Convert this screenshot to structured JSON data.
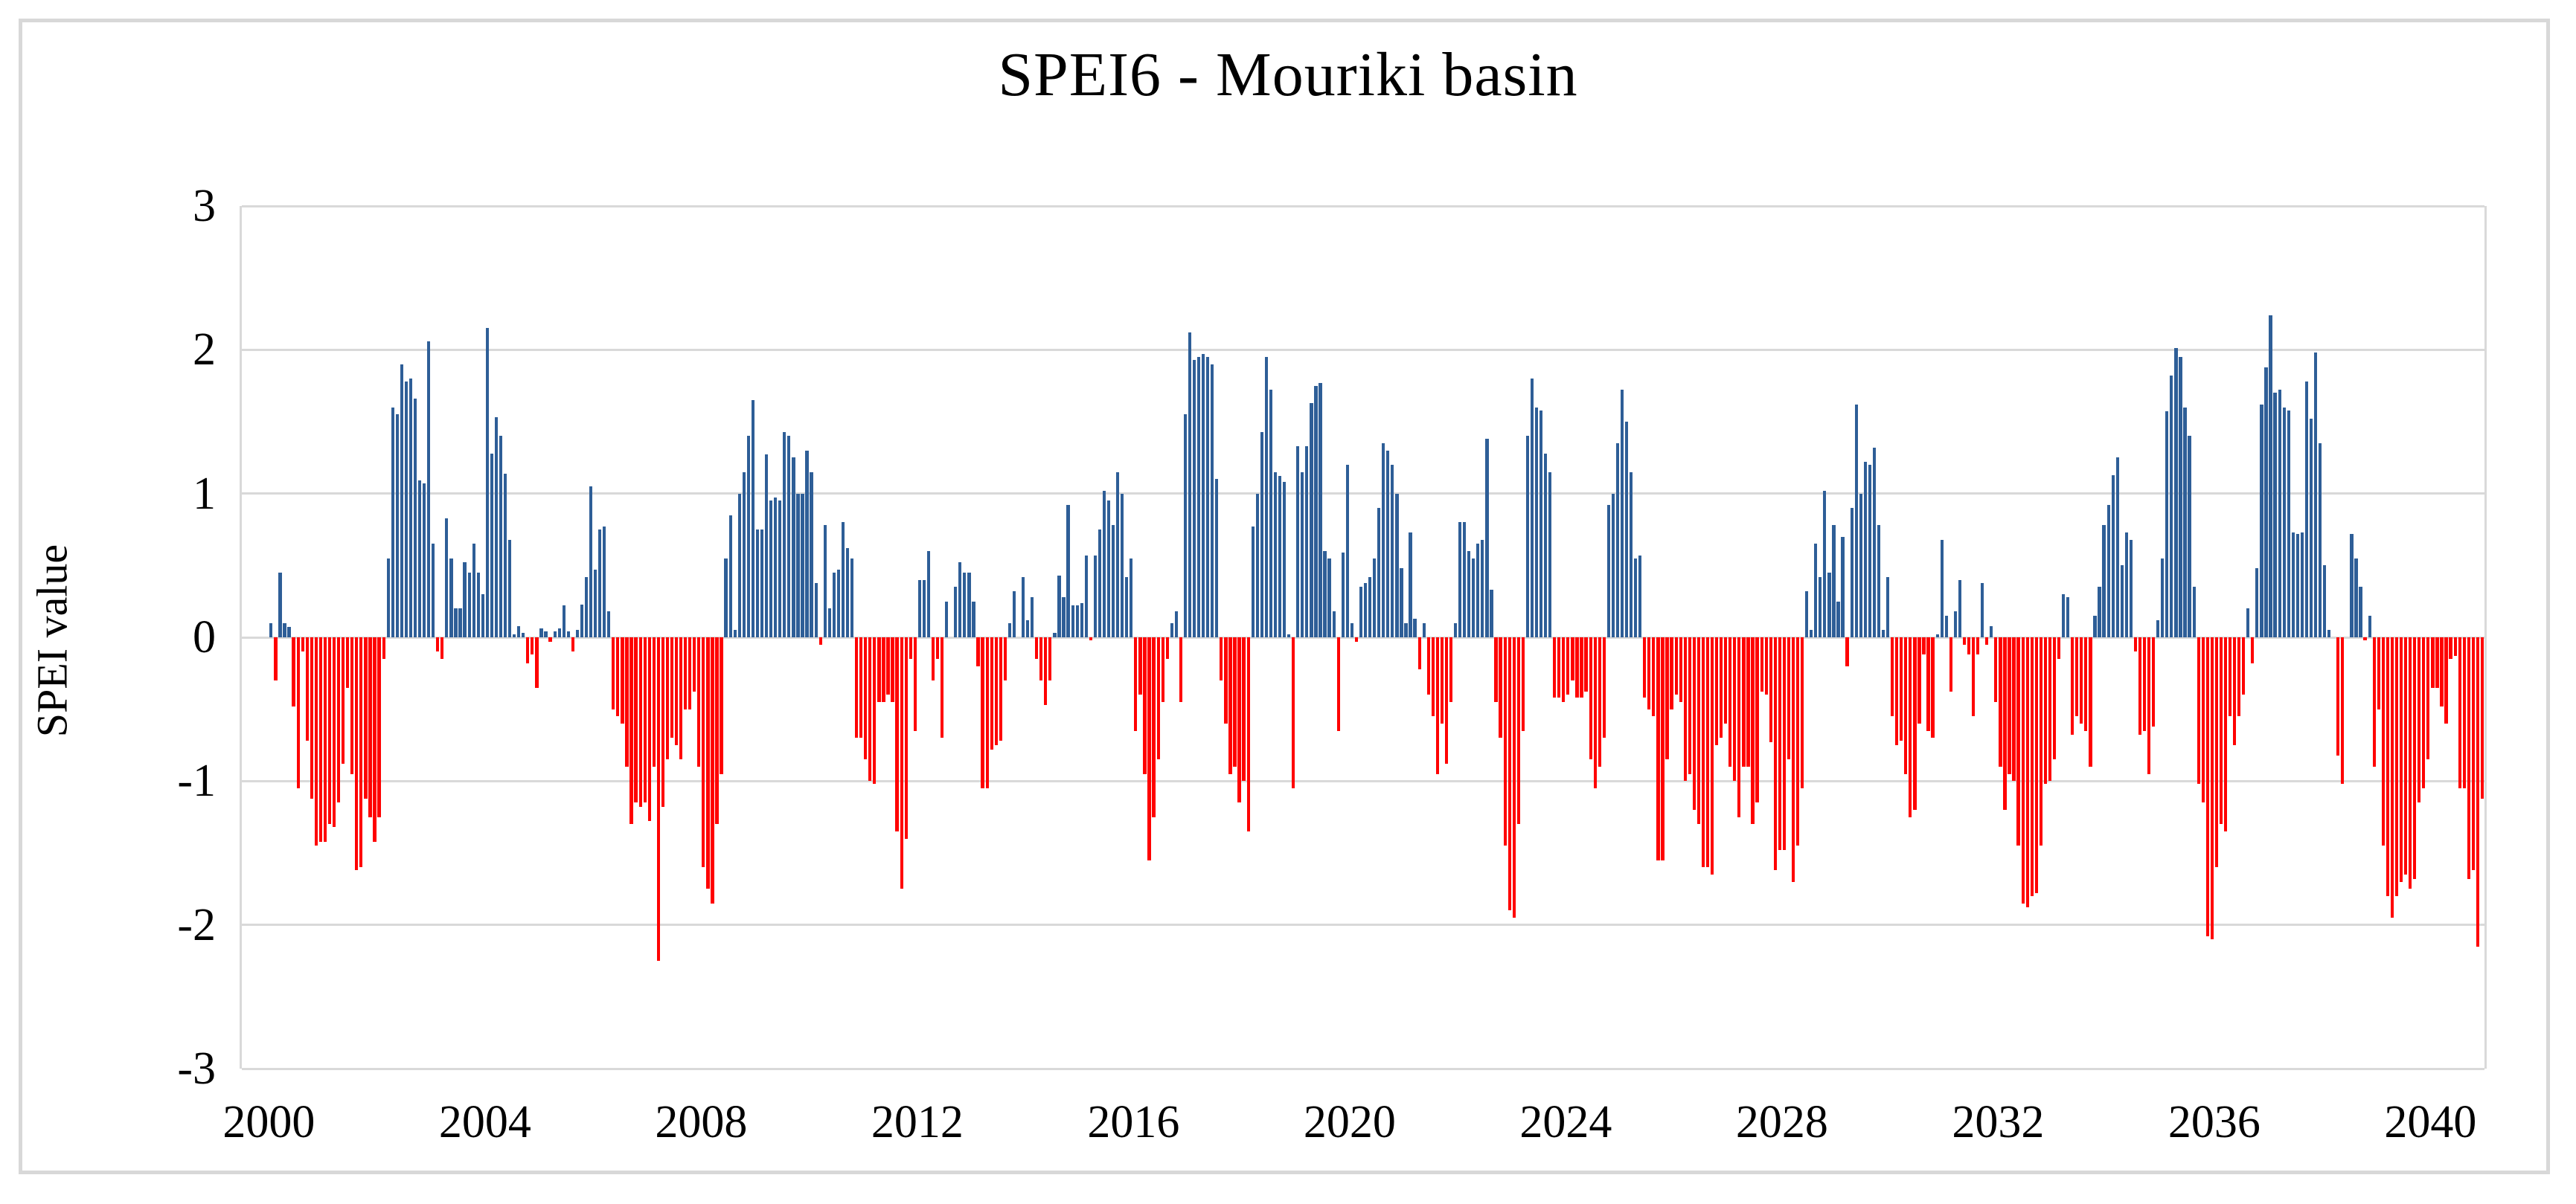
{
  "chart_data": {
    "type": "bar",
    "title": "SPEI6 - Mouriki basin",
    "xlabel": "",
    "ylabel": "SPEI value",
    "ylim": [
      -3,
      3
    ],
    "yticks": [
      3,
      2,
      1,
      0,
      -1,
      -2,
      -3
    ],
    "xticks": [
      2000,
      2004,
      2008,
      2012,
      2016,
      2020,
      2024,
      2028,
      2032,
      2036,
      2040
    ],
    "x_start": "1999-07",
    "x_end": "2040-12",
    "frequency": "monthly",
    "grid": "horizontal",
    "legend_position": "none",
    "series_name": "SPEI6 monthly value",
    "colors": {
      "positive": "#2E5E97",
      "negative": "#FF0000",
      "gridline": "#D9D9D9",
      "figure_border": "#D8D8D8",
      "text": "#000000"
    },
    "values": [
      0,
      0,
      0,
      0,
      0,
      0,
      0.1,
      -0.3,
      0.45,
      0.1,
      0.07,
      -0.48,
      -1.05,
      -0.1,
      -0.72,
      -1.12,
      -1.45,
      -1.42,
      -1.42,
      -1.3,
      -1.32,
      -1.15,
      -0.88,
      -0.35,
      -0.95,
      -1.62,
      -1.6,
      -1.12,
      -1.25,
      -1.42,
      -1.25,
      -0.15,
      0.55,
      1.6,
      1.55,
      1.9,
      1.78,
      1.8,
      1.66,
      1.09,
      1.07,
      2.06,
      0.65,
      -0.1,
      -0.15,
      0.83,
      0.55,
      0.2,
      0.2,
      0.52,
      0.45,
      0.65,
      0.45,
      0.3,
      2.15,
      1.28,
      1.53,
      1.4,
      1.14,
      0.68,
      0.02,
      0.08,
      0.03,
      -0.18,
      -0.12,
      -0.35,
      0.06,
      0.04,
      -0.03,
      0.04,
      0.06,
      0.22,
      0.04,
      -0.1,
      0.05,
      0.23,
      0.42,
      1.05,
      0.47,
      0.75,
      0.77,
      0.18,
      -0.5,
      -0.55,
      -0.6,
      -0.9,
      -1.3,
      -1.15,
      -1.18,
      -1.15,
      -1.28,
      -0.9,
      -2.25,
      -1.18,
      -0.85,
      -0.7,
      -0.75,
      -0.85,
      -0.5,
      -0.5,
      -0.38,
      -0.9,
      -1.6,
      -1.75,
      -1.85,
      -1.3,
      -0.95,
      0.55,
      0.85,
      0.05,
      1.0,
      1.15,
      1.4,
      1.65,
      0.75,
      0.75,
      1.27,
      0.95,
      0.97,
      0.95,
      1.43,
      1.4,
      1.25,
      1.0,
      1.0,
      1.3,
      1.15,
      0.38,
      -0.05,
      0.78,
      0.2,
      0.45,
      0.47,
      0.8,
      0.62,
      0.55,
      -0.7,
      -0.7,
      -0.85,
      -1.0,
      -1.02,
      -0.45,
      -0.45,
      -0.4,
      -0.45,
      -1.35,
      -1.75,
      -1.4,
      -0.15,
      -0.65,
      0.4,
      0.4,
      0.6,
      -0.3,
      -0.15,
      -0.7,
      0.25,
      0.0,
      0.35,
      0.52,
      0.45,
      0.45,
      0.25,
      -0.2,
      -1.05,
      -1.05,
      -0.78,
      -0.75,
      -0.72,
      -0.3,
      0.1,
      0.32,
      0.0,
      0.42,
      0.12,
      0.28,
      -0.15,
      -0.3,
      -0.47,
      -0.3,
      0.03,
      0.43,
      0.28,
      0.92,
      0.22,
      0.22,
      0.24,
      0.57,
      -0.02,
      0.57,
      0.75,
      1.02,
      0.95,
      0.78,
      1.15,
      1.0,
      0.42,
      0.55,
      -0.65,
      -0.4,
      -0.95,
      -1.55,
      -1.25,
      -0.85,
      -0.45,
      -0.15,
      0.1,
      0.18,
      -0.45,
      1.55,
      2.12,
      1.93,
      1.95,
      1.97,
      1.95,
      1.9,
      1.1,
      -0.3,
      -0.6,
      -0.95,
      -0.9,
      -1.15,
      -1.0,
      -1.35,
      0.77,
      1.0,
      1.43,
      1.95,
      1.72,
      1.15,
      1.12,
      1.08,
      0.02,
      -1.05,
      1.33,
      1.15,
      1.33,
      1.63,
      1.75,
      1.77,
      0.6,
      0.55,
      0.18,
      -0.65,
      0.59,
      1.2,
      0.1,
      -0.03,
      0.35,
      0.38,
      0.42,
      0.55,
      0.9,
      1.35,
      1.3,
      1.2,
      1.0,
      0.48,
      0.1,
      0.73,
      0.13,
      -0.22,
      0.1,
      -0.4,
      -0.55,
      -0.95,
      -0.6,
      -0.88,
      -0.45,
      0.1,
      0.8,
      0.8,
      0.6,
      0.55,
      0.65,
      0.68,
      1.38,
      0.33,
      -0.45,
      -0.7,
      -1.45,
      -1.9,
      -1.95,
      -1.3,
      -0.65,
      1.4,
      1.8,
      1.6,
      1.58,
      1.28,
      1.15,
      -0.42,
      -0.42,
      -0.45,
      -0.4,
      -0.3,
      -0.42,
      -0.42,
      -0.38,
      -0.85,
      -1.05,
      -0.9,
      -0.7,
      0.92,
      1.0,
      1.35,
      1.72,
      1.5,
      1.15,
      0.55,
      0.57,
      -0.42,
      -0.5,
      -0.55,
      -1.55,
      -1.55,
      -0.85,
      -0.5,
      -0.4,
      -0.45,
      -1.0,
      -0.95,
      -1.2,
      -1.3,
      -1.6,
      -1.6,
      -1.65,
      -0.75,
      -0.7,
      -0.6,
      -0.9,
      -1.0,
      -1.25,
      -0.9,
      -0.9,
      -1.3,
      -1.15,
      -0.38,
      -0.4,
      -0.73,
      -1.62,
      -1.48,
      -1.48,
      -0.85,
      -1.7,
      -1.45,
      -1.05,
      0.32,
      0.05,
      0.65,
      0.42,
      1.02,
      0.45,
      0.78,
      0.25,
      0.7,
      -0.2,
      0.9,
      1.62,
      1.0,
      1.22,
      1.2,
      1.32,
      0.78,
      0.05,
      0.42,
      -0.55,
      -0.75,
      -0.72,
      -0.95,
      -1.25,
      -1.2,
      -0.6,
      -0.12,
      -0.65,
      -0.7,
      0.02,
      0.68,
      0.15,
      -0.38,
      0.18,
      0.4,
      -0.05,
      -0.12,
      -0.55,
      -0.12,
      0.38,
      -0.05,
      0.08,
      -0.45,
      -0.9,
      -1.2,
      -0.95,
      -1.0,
      -1.45,
      -1.85,
      -1.88,
      -1.8,
      -1.78,
      -1.45,
      -1.02,
      -1.0,
      -0.85,
      -0.15,
      0.3,
      0.28,
      -0.68,
      -0.55,
      -0.6,
      -0.65,
      -0.9,
      0.15,
      0.35,
      0.78,
      0.92,
      1.13,
      1.25,
      0.5,
      0.73,
      0.68,
      -0.1,
      -0.68,
      -0.65,
      -0.95,
      -0.62,
      0.12,
      0.55,
      1.57,
      1.82,
      2.01,
      1.95,
      1.6,
      1.4,
      0.35,
      -1.02,
      -1.15,
      -2.08,
      -2.1,
      -1.6,
      -1.3,
      -1.35,
      -0.55,
      -0.75,
      -0.55,
      -0.4,
      0.2,
      -0.18,
      0.48,
      1.62,
      1.88,
      2.24,
      1.7,
      1.72,
      1.6,
      1.58,
      0.73,
      0.72,
      0.73,
      1.78,
      1.52,
      1.98,
      1.35,
      0.5,
      0.05,
      0.0,
      -0.82,
      -1.02,
      0.0,
      0.72,
      0.55,
      0.35,
      -0.02,
      0.15,
      -0.9,
      -0.5,
      -1.45,
      -1.8,
      -1.95,
      -1.8,
      -1.7,
      -1.65,
      -1.75,
      -1.68,
      -1.15,
      -1.05,
      -0.85,
      -0.35,
      -0.35,
      -0.48,
      -0.6,
      -0.15,
      -0.13,
      -1.05,
      -1.05,
      -1.68,
      -1.62,
      -2.15,
      -1.12
    ]
  }
}
